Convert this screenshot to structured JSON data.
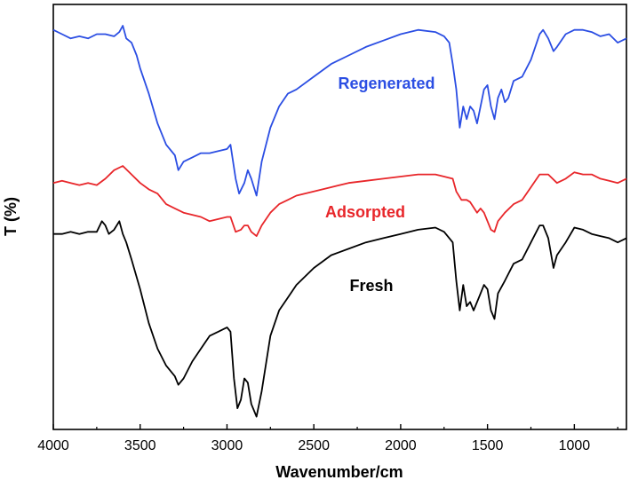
{
  "chart_data": {
    "type": "line",
    "xlabel": "Wavenumber/cm",
    "ylabel": "T (%)",
    "xlim": [
      4000,
      700
    ],
    "ylim": [
      0,
      100
    ],
    "x_ticks": [
      4000,
      3500,
      3000,
      2500,
      2000,
      1500,
      1000
    ],
    "y_ticks_shown": false,
    "grid": false,
    "legend": "inline labels",
    "series": [
      {
        "name": "Regenerated",
        "color": "#2b4ee3",
        "points": [
          [
            4000,
            94
          ],
          [
            3950,
            93
          ],
          [
            3900,
            92
          ],
          [
            3850,
            92.5
          ],
          [
            3800,
            92
          ],
          [
            3750,
            93
          ],
          [
            3700,
            93
          ],
          [
            3650,
            92.5
          ],
          [
            3620,
            93.5
          ],
          [
            3600,
            95
          ],
          [
            3580,
            92
          ],
          [
            3550,
            91
          ],
          [
            3520,
            88
          ],
          [
            3500,
            85
          ],
          [
            3450,
            79
          ],
          [
            3400,
            72
          ],
          [
            3350,
            67
          ],
          [
            3300,
            64.5
          ],
          [
            3280,
            61
          ],
          [
            3250,
            63
          ],
          [
            3200,
            64
          ],
          [
            3150,
            65
          ],
          [
            3100,
            65
          ],
          [
            3050,
            65.5
          ],
          [
            3000,
            66
          ],
          [
            2980,
            67
          ],
          [
            2950,
            59
          ],
          [
            2930,
            55.5
          ],
          [
            2900,
            58
          ],
          [
            2880,
            61
          ],
          [
            2860,
            59
          ],
          [
            2830,
            55
          ],
          [
            2800,
            63
          ],
          [
            2750,
            71
          ],
          [
            2700,
            76
          ],
          [
            2650,
            79
          ],
          [
            2600,
            80
          ],
          [
            2500,
            83
          ],
          [
            2400,
            86
          ],
          [
            2300,
            88
          ],
          [
            2200,
            90
          ],
          [
            2100,
            91.5
          ],
          [
            2000,
            93
          ],
          [
            1900,
            94
          ],
          [
            1800,
            93.5
          ],
          [
            1750,
            92.5
          ],
          [
            1720,
            91
          ],
          [
            1700,
            86
          ],
          [
            1680,
            80
          ],
          [
            1660,
            71
          ],
          [
            1640,
            76
          ],
          [
            1620,
            73
          ],
          [
            1600,
            76
          ],
          [
            1580,
            75
          ],
          [
            1560,
            72
          ],
          [
            1520,
            80
          ],
          [
            1500,
            81
          ],
          [
            1480,
            76
          ],
          [
            1460,
            73
          ],
          [
            1440,
            78
          ],
          [
            1420,
            80
          ],
          [
            1400,
            77
          ],
          [
            1380,
            78
          ],
          [
            1350,
            82
          ],
          [
            1300,
            83
          ],
          [
            1250,
            87
          ],
          [
            1200,
            93
          ],
          [
            1180,
            94
          ],
          [
            1150,
            92
          ],
          [
            1120,
            89
          ],
          [
            1100,
            90
          ],
          [
            1050,
            93
          ],
          [
            1000,
            94
          ],
          [
            950,
            94
          ],
          [
            900,
            93.5
          ],
          [
            850,
            92.5
          ],
          [
            800,
            93
          ],
          [
            750,
            91
          ],
          [
            700,
            92
          ]
        ]
      },
      {
        "name": "Adsorpted",
        "color": "#e8262a",
        "points": [
          [
            4000,
            58
          ],
          [
            3950,
            58.5
          ],
          [
            3900,
            58
          ],
          [
            3850,
            57.5
          ],
          [
            3800,
            58
          ],
          [
            3750,
            57.5
          ],
          [
            3700,
            59
          ],
          [
            3650,
            61
          ],
          [
            3600,
            62
          ],
          [
            3550,
            60
          ],
          [
            3500,
            58
          ],
          [
            3450,
            56.5
          ],
          [
            3400,
            55.5
          ],
          [
            3350,
            53
          ],
          [
            3300,
            52
          ],
          [
            3250,
            51
          ],
          [
            3200,
            50.5
          ],
          [
            3150,
            50
          ],
          [
            3100,
            49
          ],
          [
            3050,
            49.5
          ],
          [
            3000,
            50
          ],
          [
            2980,
            50
          ],
          [
            2950,
            46.5
          ],
          [
            2920,
            47
          ],
          [
            2900,
            48
          ],
          [
            2880,
            48
          ],
          [
            2860,
            46.5
          ],
          [
            2830,
            45.5
          ],
          [
            2800,
            48
          ],
          [
            2750,
            51
          ],
          [
            2700,
            53
          ],
          [
            2650,
            54
          ],
          [
            2600,
            55
          ],
          [
            2500,
            56
          ],
          [
            2400,
            57
          ],
          [
            2300,
            58
          ],
          [
            2200,
            58.5
          ],
          [
            2100,
            59
          ],
          [
            2000,
            59.5
          ],
          [
            1900,
            60
          ],
          [
            1800,
            60
          ],
          [
            1750,
            59.5
          ],
          [
            1700,
            59
          ],
          [
            1680,
            56
          ],
          [
            1650,
            54
          ],
          [
            1620,
            54
          ],
          [
            1600,
            53.5
          ],
          [
            1560,
            51
          ],
          [
            1540,
            52
          ],
          [
            1520,
            51
          ],
          [
            1480,
            47
          ],
          [
            1460,
            46.5
          ],
          [
            1440,
            49
          ],
          [
            1400,
            51
          ],
          [
            1350,
            53
          ],
          [
            1300,
            54
          ],
          [
            1250,
            57
          ],
          [
            1200,
            60
          ],
          [
            1150,
            60
          ],
          [
            1100,
            58
          ],
          [
            1050,
            59
          ],
          [
            1000,
            60.5
          ],
          [
            950,
            60
          ],
          [
            900,
            60
          ],
          [
            850,
            59
          ],
          [
            800,
            58.5
          ],
          [
            750,
            58
          ],
          [
            700,
            59
          ]
        ]
      },
      {
        "name": "Fresh",
        "color": "#000000",
        "points": [
          [
            4000,
            46
          ],
          [
            3950,
            46
          ],
          [
            3900,
            46.5
          ],
          [
            3850,
            46
          ],
          [
            3800,
            46.5
          ],
          [
            3750,
            46.5
          ],
          [
            3720,
            49
          ],
          [
            3700,
            48
          ],
          [
            3680,
            46
          ],
          [
            3650,
            47
          ],
          [
            3620,
            49
          ],
          [
            3600,
            46
          ],
          [
            3580,
            44
          ],
          [
            3550,
            40
          ],
          [
            3500,
            33
          ],
          [
            3450,
            25
          ],
          [
            3400,
            19
          ],
          [
            3350,
            15
          ],
          [
            3300,
            12.5
          ],
          [
            3280,
            10.5
          ],
          [
            3250,
            12
          ],
          [
            3200,
            16
          ],
          [
            3150,
            19
          ],
          [
            3100,
            22
          ],
          [
            3050,
            23
          ],
          [
            3000,
            24
          ],
          [
            2980,
            23
          ],
          [
            2960,
            12
          ],
          [
            2940,
            5
          ],
          [
            2920,
            7
          ],
          [
            2900,
            12
          ],
          [
            2880,
            11
          ],
          [
            2860,
            6
          ],
          [
            2830,
            3
          ],
          [
            2800,
            9
          ],
          [
            2750,
            22
          ],
          [
            2700,
            28
          ],
          [
            2650,
            31
          ],
          [
            2600,
            34
          ],
          [
            2500,
            38
          ],
          [
            2400,
            41
          ],
          [
            2300,
            42.5
          ],
          [
            2200,
            44
          ],
          [
            2100,
            45
          ],
          [
            2000,
            46
          ],
          [
            1900,
            47
          ],
          [
            1800,
            47.5
          ],
          [
            1750,
            46.5
          ],
          [
            1700,
            44
          ],
          [
            1680,
            35
          ],
          [
            1660,
            28
          ],
          [
            1640,
            34
          ],
          [
            1620,
            29
          ],
          [
            1600,
            30
          ],
          [
            1580,
            28
          ],
          [
            1550,
            31
          ],
          [
            1520,
            34
          ],
          [
            1500,
            33
          ],
          [
            1480,
            28
          ],
          [
            1460,
            26
          ],
          [
            1440,
            32
          ],
          [
            1400,
            35
          ],
          [
            1350,
            39
          ],
          [
            1300,
            40
          ],
          [
            1250,
            44
          ],
          [
            1200,
            48
          ],
          [
            1180,
            48
          ],
          [
            1150,
            45
          ],
          [
            1120,
            38
          ],
          [
            1100,
            41
          ],
          [
            1050,
            44
          ],
          [
            1000,
            47.5
          ],
          [
            950,
            47
          ],
          [
            900,
            46
          ],
          [
            850,
            45.5
          ],
          [
            800,
            45
          ],
          [
            750,
            44
          ],
          [
            700,
            45
          ]
        ]
      }
    ]
  }
}
